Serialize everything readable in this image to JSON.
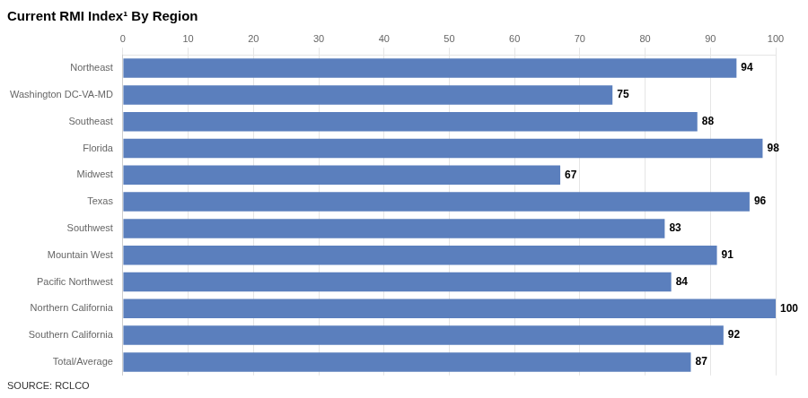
{
  "chart_data": {
    "type": "bar",
    "orientation": "horizontal",
    "title": "Current RMI Index¹ By Region",
    "annotations": [
      "SOURCE: RCLCO"
    ],
    "categories": [
      "Total/Average",
      "Southern California",
      "Northern California",
      "Pacific Northwest",
      "Mountain West",
      "Southwest",
      "Texas",
      "Midwest",
      "Florida",
      "Southeast",
      "Washington DC-VA-MD",
      "Northeast"
    ],
    "values": [
      87,
      92,
      100,
      84,
      91,
      83,
      96,
      67,
      98,
      88,
      75,
      94
    ],
    "color": "#5b7fbd",
    "xlim": [
      0,
      100
    ],
    "xticks": [
      0,
      10,
      20,
      30,
      40,
      50,
      60,
      70,
      80,
      90,
      100
    ],
    "grid": true,
    "data_labels": true
  }
}
